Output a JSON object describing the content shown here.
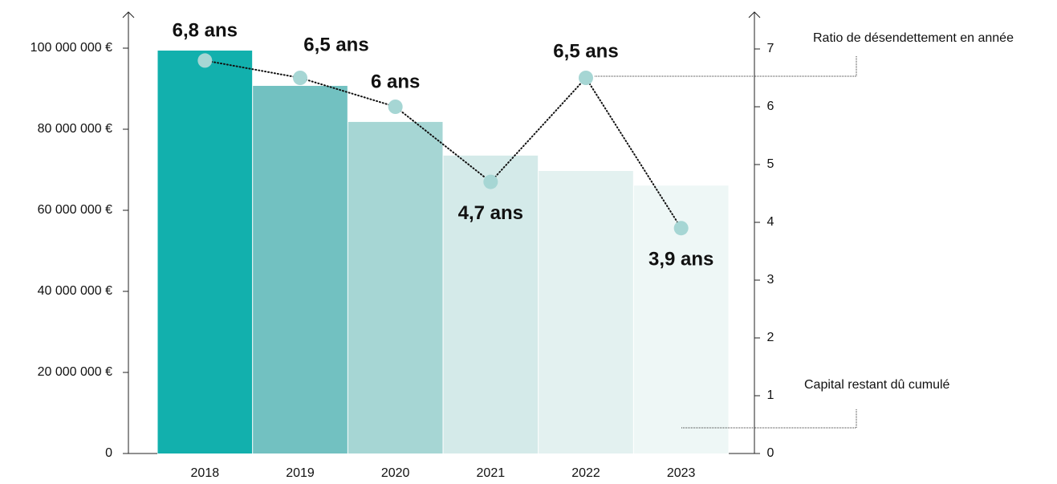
{
  "chart_data": {
    "type": "bar",
    "categories": [
      "2018",
      "2019",
      "2020",
      "2021",
      "2022",
      "2023"
    ],
    "series": [
      {
        "name": "Capital restant dû cumulé",
        "type": "bar",
        "colors": [
          "#12b0ad",
          "#72c1c1",
          "#a6d6d4",
          "#d4eae9",
          "#e3f1f0",
          "#eef7f6"
        ],
        "values": [
          99400000,
          90700000,
          81800000,
          73500000,
          69700000,
          66100000
        ]
      },
      {
        "name": "Ratio de désendettement en année",
        "type": "line",
        "axis": "y2",
        "color": "#a6d6d4",
        "values": [
          6.8,
          6.5,
          6,
          4.7,
          6.5,
          3.9
        ],
        "value_labels": [
          "6,8 ans",
          "6,5 ans",
          "6 ans",
          "4,7 ans",
          "6,5 ans",
          "3,9 ans"
        ]
      }
    ],
    "ylim": [
      0,
      100000000
    ],
    "yticks": [
      0,
      {
        "value": 20000000,
        "label": "20 000 000 €"
      },
      {
        "value": 40000000,
        "label": "40 000 000 €"
      },
      {
        "value": 60000000,
        "label": "60 000 000 €"
      },
      {
        "value": 80000000,
        "label": "80 000 000 €"
      },
      {
        "value": 100000000,
        "label": "100 000 000 €"
      }
    ],
    "y2lim": [
      0,
      7
    ],
    "y2ticks": [
      0,
      1,
      2,
      3,
      4,
      5,
      6,
      7
    ],
    "grid": false
  }
}
